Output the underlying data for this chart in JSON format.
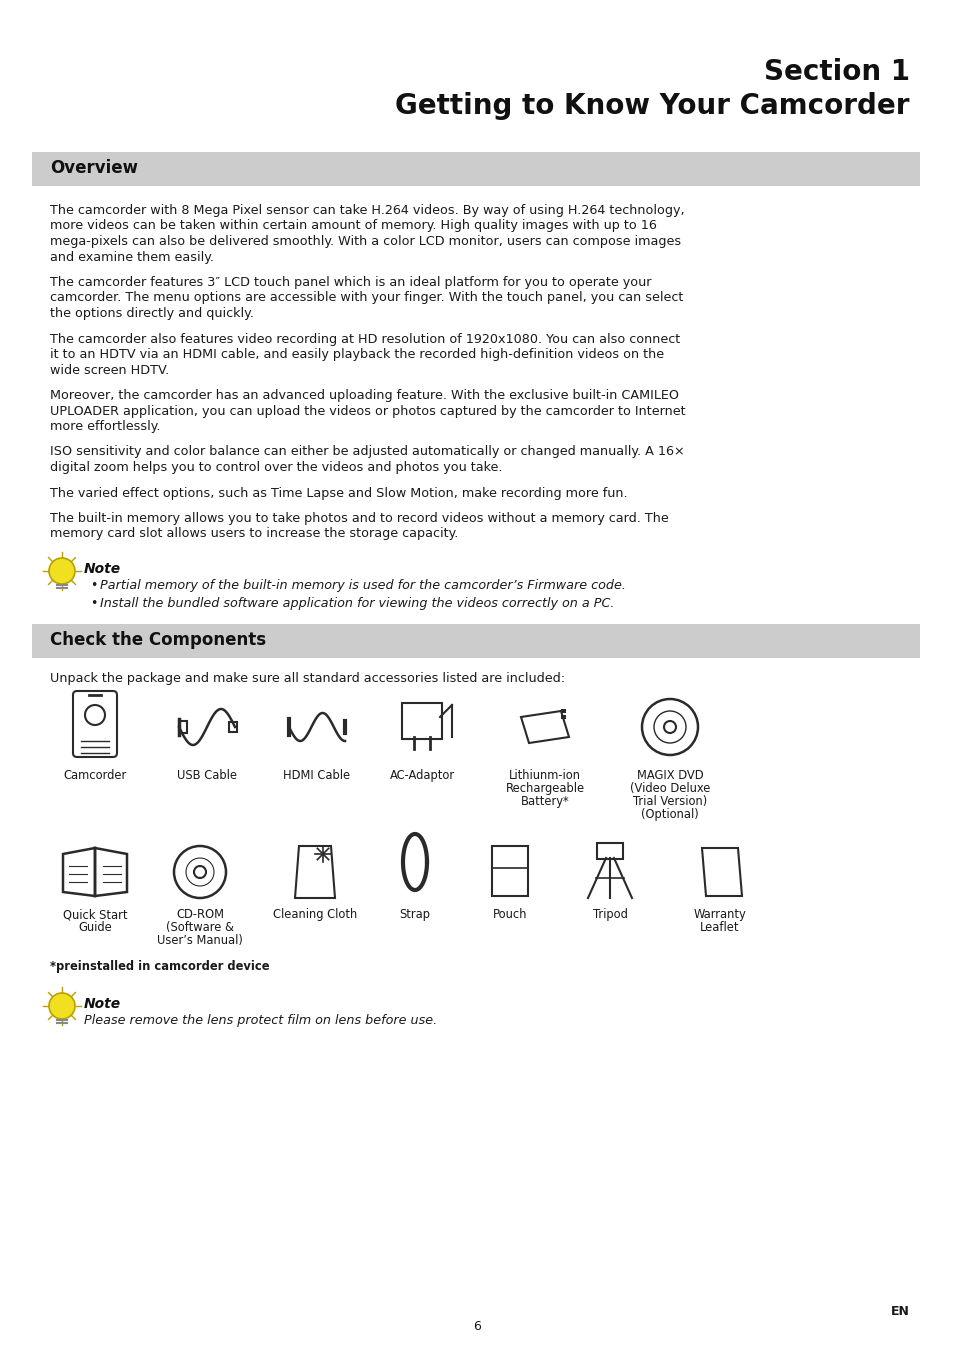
{
  "title_line1": "Section 1",
  "title_line2": "Getting to Know Your Camcorder",
  "section1_title": "Overview",
  "section2_title": "Check the Components",
  "overview_para1": "The camcorder with 8 Mega Pixel sensor can take H.264 videos. By way of using H.264 technology, more videos can be taken within certain amount of memory. High quality images with up to 16 mega-pixels can also be delivered smoothly. With a color LCD monitor, users can compose images and examine them easily.",
  "overview_para2": "The camcorder features 3″ LCD touch panel which is an ideal platform for you to operate your camcorder. The menu options are accessible with your finger. With the touch panel, you can select the options directly and quickly.",
  "overview_para3": "The camcorder also features video recording at HD resolution of 1920x1080. You can also connect it to an HDTV via an HDMI cable, and easily playback the recorded high-definition videos on the wide screen HDTV.",
  "overview_para4_pre": "Moreover, the camcorder has an advanced uploading feature. With the exclusive built-in ",
  "overview_para4_bold": "CAMILEO UPLOADER",
  "overview_para4_post": " application, you can upload the videos or photos captured by the camcorder to Internet more effortlessly.",
  "overview_para5": "ISO sensitivity and color balance can either be adjusted automatically or changed manually. A 16× digital zoom helps you to control over the videos and photos you take.",
  "overview_para6": "The varied effect options, such as Time Lapse and Slow Motion, make recording more fun.",
  "overview_para7": "The built-in memory allows you to take photos and to record videos without a memory card. The memory card slot allows users to increase the storage capacity.",
  "note1_title": "Note",
  "note1_bullet1": "Partial memory of the built-in memory is used for the camcorder’s Firmware code.",
  "note1_bullet2": "Install the bundled software application for viewing the videos correctly on a PC.",
  "components_intro": "Unpack the package and make sure all standard accessories listed are included:",
  "row1_labels": [
    "Camcorder",
    "USB Cable",
    "HDMI Cable",
    "AC-Adaptor",
    "Lithiunm-ion\nRechargeable\nBattery*",
    "MAGIX DVD\n(Video Deluxe\nTrial Version)\n(Optional)"
  ],
  "row2_labels": [
    "Quick Start\nGuide",
    "CD-ROM\n(Software &\nUser’s Manual)",
    "Cleaning Cloth",
    "Strap",
    "Pouch",
    "Tripod",
    "Warranty\nLeaflet"
  ],
  "preinstalled_note": "*preinstalled in camcorder device",
  "note2_title": "Note",
  "note2_text": "Please remove the lens protect film on lens before use.",
  "page_number": "6",
  "en_label": "EN",
  "bg_color": "#ffffff",
  "section_header_bg": "#cccccc",
  "text_color": "#1a1a1a",
  "body_font_size": 9.2,
  "title_font_size": 20,
  "section_title_font_size": 12
}
